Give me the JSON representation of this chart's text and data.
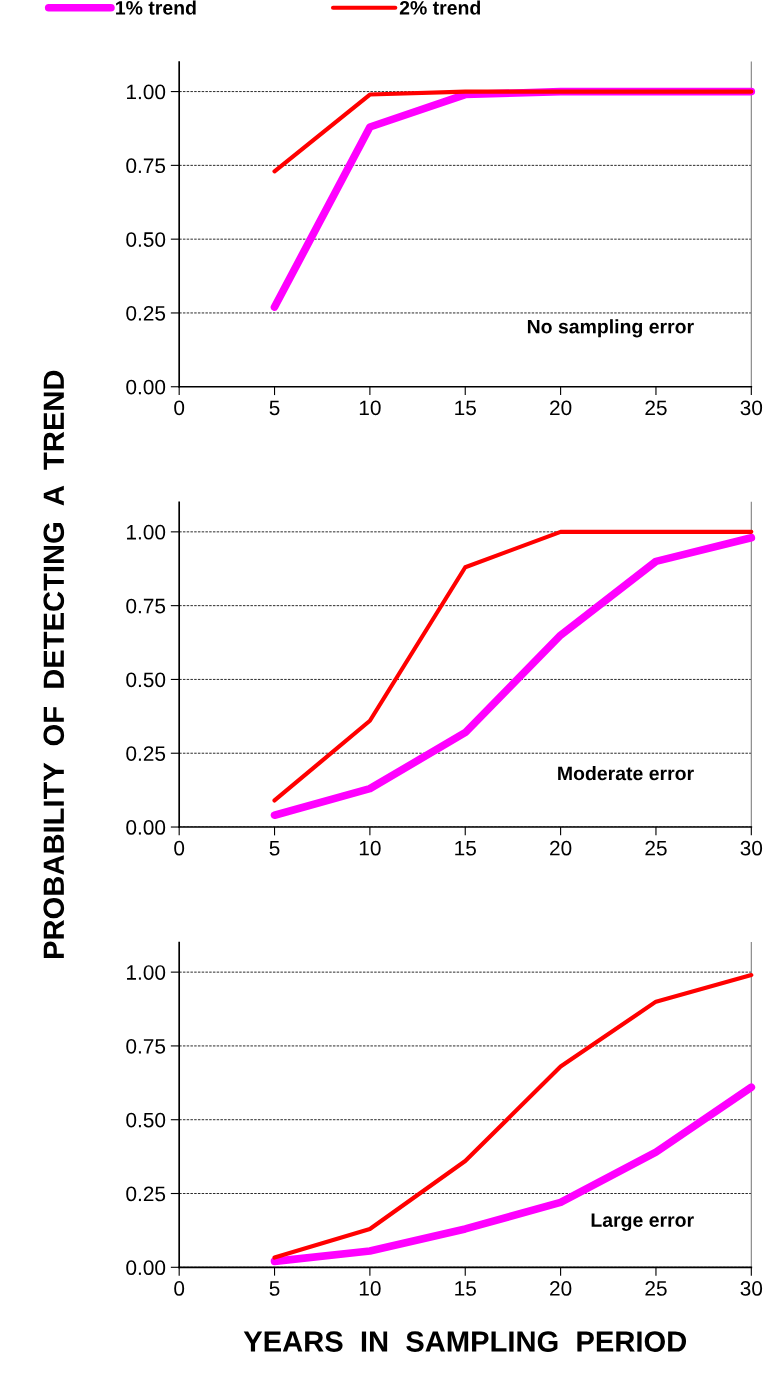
{
  "chart_data": [
    {
      "type": "line",
      "x": [
        5,
        10,
        15,
        20,
        25,
        30
      ],
      "xlim": [
        0,
        30
      ],
      "xticks": [
        0,
        5,
        10,
        15,
        20,
        25,
        30
      ],
      "ylim": [
        0,
        1.1
      ],
      "yticks": [
        {
          "value": 0,
          "label": "0.00"
        },
        {
          "value": 0.25,
          "label": "0.25"
        },
        {
          "value": 0.5,
          "label": "0.50"
        },
        {
          "value": 0.75,
          "label": "0.75"
        },
        {
          "value": 1.0,
          "label": "1.00"
        }
      ],
      "grid": "y",
      "legend": "top",
      "line_style": "solid",
      "marker": "none",
      "annotations": [
        "No sampling error"
      ],
      "series": [
        {
          "name": "1% trend",
          "color": "#ff00ff",
          "values": [
            0.27,
            0.88,
            0.99,
            1.0,
            1.0,
            1.0
          ]
        },
        {
          "name": "2% trend",
          "color": "#ff0000",
          "values": [
            0.73,
            0.99,
            1.0,
            1.0,
            1.0,
            1.0
          ]
        }
      ]
    },
    {
      "type": "line",
      "x": [
        5,
        10,
        15,
        20,
        25,
        30
      ],
      "xlim": [
        0,
        30
      ],
      "xticks": [
        0,
        5,
        10,
        15,
        20,
        25,
        30
      ],
      "ylim": [
        0,
        1.1
      ],
      "yticks": [
        {
          "value": 0,
          "label": "0.00"
        },
        {
          "value": 0.25,
          "label": "0.25"
        },
        {
          "value": 0.5,
          "label": "0.50"
        },
        {
          "value": 0.75,
          "label": "0.75"
        },
        {
          "value": 1.0,
          "label": "1.00"
        }
      ],
      "grid": "y",
      "line_style": "solid",
      "marker": "none",
      "ylabel": "PROBABILITY  OF  DETECTING  A  TREND",
      "annotations": [
        "Moderate error"
      ],
      "series": [
        {
          "color": "#ff00ff",
          "values": [
            0.04,
            0.13,
            0.32,
            0.65,
            0.9,
            0.98
          ]
        },
        {
          "color": "#ff0000",
          "values": [
            0.09,
            0.36,
            0.88,
            1.0,
            1.0,
            1.0
          ]
        }
      ]
    },
    {
      "type": "line",
      "x": [
        5,
        10,
        15,
        20,
        25,
        30
      ],
      "xlim": [
        0,
        30
      ],
      "xticks": [
        0,
        5,
        10,
        15,
        20,
        25,
        30
      ],
      "ylim": [
        0,
        1.1
      ],
      "yticks": [
        {
          "value": 0,
          "label": "0.00"
        },
        {
          "value": 0.25,
          "label": "0.25"
        },
        {
          "value": 0.5,
          "label": "0.50"
        },
        {
          "value": 0.75,
          "label": "0.75"
        },
        {
          "value": 1.0,
          "label": "1.00"
        }
      ],
      "grid": "y",
      "line_style": "solid",
      "marker": "none",
      "xlabel": "YEARS  IN  SAMPLING  PERIOD",
      "annotations": [
        "Large error"
      ],
      "series": [
        {
          "color": "#ff00ff",
          "values": [
            0.02,
            0.055,
            0.13,
            0.22,
            0.39,
            0.61
          ]
        },
        {
          "color": "#ff0000",
          "values": [
            0.033,
            0.13,
            0.36,
            0.68,
            0.9,
            0.99
          ]
        }
      ]
    }
  ]
}
